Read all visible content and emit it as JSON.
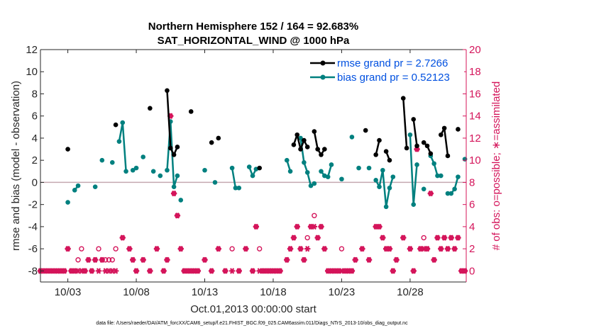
{
  "chart_data": {
    "type": "line",
    "title_line1": "Northern Hemisphere 152 / 164 = 92.683%",
    "title_line2": "SAT_HORIZONTAL_WIND @ 1000 hPa",
    "ylabel": "rmse and bias (model - observation)",
    "y2label": "# of obs: o=possible; ∗=assimilated",
    "xlabel": "Oct.01,2013 00:00:00 start",
    "footer": "data file: /Users/raeder/DAI/ATM_forcXX/CAM6_setup/f.e21.FHIST_BGC.f09_025.CAM6assim.011/Diags_NTrS_2013-10/obs_diag_output.nc",
    "xlim": [
      1,
      32.1
    ],
    "ylim": [
      -9,
      12
    ],
    "y2lim": [
      -1,
      20
    ],
    "x_ticks": [
      3,
      8,
      13,
      18,
      23,
      28
    ],
    "x_tick_labels": [
      "10/03",
      "10/08",
      "10/13",
      "10/18",
      "10/23",
      "10/28"
    ],
    "y_ticks": [
      -8,
      -6,
      -4,
      -2,
      0,
      2,
      4,
      6,
      8,
      10,
      12
    ],
    "y_tick_labels": [
      "-8",
      "-6",
      "-4",
      "-2",
      "0",
      "2",
      "4",
      "6",
      "8",
      "10",
      "12"
    ],
    "y2_ticks": [
      0,
      2,
      4,
      6,
      8,
      10,
      12,
      14,
      16,
      18,
      20
    ],
    "y2_tick_labels": [
      "0",
      "2",
      "4",
      "6",
      "8",
      "10",
      "12",
      "14",
      "16",
      "18",
      "20"
    ],
    "colors": {
      "rmse": "#000000",
      "bias": "#00807f",
      "obs": "#d4145a",
      "zero": "#c4a9b0"
    },
    "legend": {
      "position": "top-right",
      "rmse_label": "rmse grand pr = 2.7266",
      "bias_label": "bias grand pr = 0.52123",
      "text_color": "#0050e0"
    },
    "series": [
      {
        "name": "rmse",
        "segments": [
          [
            [
              3.0,
              3.0
            ]
          ],
          [
            [
              6.5,
              5.2
            ]
          ],
          [
            [
              9.0,
              6.7
            ]
          ],
          [
            [
              10.25,
              8.3
            ],
            [
              10.5,
              3.1
            ],
            [
              10.75,
              2.5
            ],
            [
              11.0,
              3.2
            ]
          ],
          [
            [
              12.0,
              6.4
            ]
          ],
          [
            [
              13.5,
              3.6
            ]
          ],
          [
            [
              14.0,
              4.0
            ]
          ],
          [
            [
              17.0,
              1.3
            ]
          ],
          [
            [
              19.5,
              3.4
            ],
            [
              19.75,
              4.3
            ],
            [
              20.0,
              3.0
            ],
            [
              20.25,
              3.8
            ],
            [
              20.5,
              3.2
            ]
          ],
          [
            [
              21.0,
              4.6
            ],
            [
              21.25,
              3.0
            ],
            [
              21.5,
              2.5
            ],
            [
              21.75,
              3.0
            ]
          ],
          [
            [
              24.75,
              4.7
            ]
          ],
          [
            [
              25.5,
              2.5
            ],
            [
              25.75,
              3.8
            ]
          ],
          [
            [
              26.25,
              2.8
            ],
            [
              26.5,
              2.0
            ]
          ],
          [
            [
              27.5,
              7.6
            ],
            [
              27.75,
              3.1
            ]
          ],
          [
            [
              28.25,
              5.7
            ],
            [
              28.5,
              3.3
            ]
          ],
          [
            [
              29.0,
              3.6
            ],
            [
              29.25,
              3.3
            ],
            [
              29.5,
              2.6
            ]
          ],
          [
            [
              30.25,
              4.3
            ],
            [
              30.5,
              4.9
            ],
            [
              30.75,
              2.4
            ]
          ],
          [
            [
              31.5,
              4.8
            ]
          ]
        ]
      },
      {
        "name": "bias",
        "segments": [
          [
            [
              3.0,
              -1.8
            ]
          ],
          [
            [
              3.5,
              -0.7
            ],
            [
              3.75,
              -0.3
            ]
          ],
          [
            [
              5.0,
              -0.4
            ]
          ],
          [
            [
              5.5,
              2.0
            ]
          ],
          [
            [
              6.25,
              1.8
            ]
          ],
          [
            [
              6.75,
              3.7
            ],
            [
              7.0,
              5.4
            ],
            [
              7.25,
              1.0
            ]
          ],
          [
            [
              7.75,
              1.1
            ],
            [
              8.0,
              1.3
            ]
          ],
          [
            [
              8.5,
              2.3
            ]
          ],
          [
            [
              9.25,
              1.0
            ]
          ],
          [
            [
              9.75,
              0.6
            ]
          ],
          [
            [
              10.25,
              1.1
            ],
            [
              10.5,
              5.5
            ],
            [
              10.75,
              -0.4
            ],
            [
              11.0,
              0.6
            ]
          ],
          [
            [
              11.25,
              -1.6
            ]
          ],
          [
            [
              13.0,
              1.1
            ]
          ],
          [
            [
              13.75,
              0.0
            ]
          ],
          [
            [
              15.0,
              1.3
            ],
            [
              15.25,
              -0.5
            ],
            [
              15.5,
              -0.5
            ]
          ],
          [
            [
              16.25,
              1.4
            ],
            [
              16.5,
              0.6
            ],
            [
              16.75,
              1.2
            ]
          ],
          [
            [
              19.0,
              2.0
            ],
            [
              19.25,
              1.0
            ]
          ],
          [
            [
              20.0,
              4.0
            ],
            [
              20.25,
              1.8
            ],
            [
              20.5,
              0.9
            ],
            [
              20.75,
              -0.3
            ],
            [
              21.0,
              -0.1
            ]
          ],
          [
            [
              21.5,
              1.0
            ],
            [
              21.75,
              0.6
            ],
            [
              22.0,
              0.5
            ],
            [
              22.25,
              1.6
            ]
          ],
          [
            [
              23.0,
              0.3
            ]
          ],
          [
            [
              23.75,
              4.1
            ]
          ],
          [
            [
              24.25,
              1.3
            ]
          ],
          [
            [
              25.0,
              1.3
            ]
          ],
          [
            [
              25.5,
              0.2
            ],
            [
              25.75,
              -0.4
            ],
            [
              26.0,
              1.1
            ],
            [
              26.25,
              -2.2
            ],
            [
              26.5,
              -0.5
            ],
            [
              26.75,
              0.5
            ]
          ],
          [
            [
              28.0,
              4.3
            ],
            [
              28.25,
              -2.0
            ],
            [
              28.5,
              1.6
            ]
          ],
          [
            [
              29.0,
              -0.6
            ]
          ],
          [
            [
              29.5,
              2.4
            ],
            [
              29.75,
              1.7
            ],
            [
              30.0,
              0.6
            ],
            [
              30.25,
              0.6
            ]
          ],
          [
            [
              30.75,
              -1.0
            ],
            [
              31.0,
              -1.0
            ],
            [
              31.25,
              -0.6
            ],
            [
              31.5,
              0.5
            ]
          ],
          [
            [
              32.0,
              2.1
            ]
          ]
        ]
      }
    ],
    "obs_possible": [
      [
        1,
        0
      ],
      [
        1.25,
        0
      ],
      [
        1.5,
        0
      ],
      [
        1.75,
        0
      ],
      [
        2,
        0
      ],
      [
        2.25,
        0
      ],
      [
        2.5,
        0
      ],
      [
        2.75,
        0
      ],
      [
        3,
        2
      ],
      [
        3.25,
        0
      ],
      [
        3.5,
        0
      ],
      [
        3.75,
        1
      ],
      [
        4,
        2
      ],
      [
        4.25,
        0
      ],
      [
        4.5,
        1
      ],
      [
        4.75,
        0
      ],
      [
        5,
        1
      ],
      [
        5.25,
        2
      ],
      [
        5.5,
        1
      ],
      [
        5.75,
        1
      ],
      [
        6,
        1
      ],
      [
        6.25,
        1
      ],
      [
        6.5,
        2
      ],
      [
        7,
        3
      ],
      [
        7.5,
        2
      ],
      [
        7.75,
        1
      ],
      [
        8,
        0
      ],
      [
        8.5,
        1
      ],
      [
        9,
        0
      ],
      [
        9.5,
        2
      ],
      [
        10,
        0
      ],
      [
        10.25,
        1
      ],
      [
        10.5,
        14
      ],
      [
        10.75,
        7
      ],
      [
        11,
        5
      ],
      [
        11.25,
        2
      ],
      [
        11.5,
        0
      ],
      [
        11.75,
        0
      ],
      [
        12,
        0
      ],
      [
        12.25,
        0
      ],
      [
        12.5,
        0
      ],
      [
        13,
        1
      ],
      [
        13.5,
        0
      ],
      [
        14,
        2
      ],
      [
        14.5,
        0
      ],
      [
        15,
        2
      ],
      [
        15.5,
        0
      ],
      [
        16,
        2
      ],
      [
        16.5,
        0
      ],
      [
        16.75,
        4
      ],
      [
        17,
        2
      ],
      [
        17.25,
        0
      ],
      [
        17.5,
        0
      ],
      [
        17.75,
        0
      ],
      [
        18,
        0
      ],
      [
        18.25,
        0
      ],
      [
        18.5,
        0
      ],
      [
        19,
        1
      ],
      [
        19.25,
        2
      ],
      [
        19.5,
        3
      ],
      [
        19.75,
        4
      ],
      [
        20,
        2
      ],
      [
        20.25,
        1
      ],
      [
        20.5,
        3
      ],
      [
        20.75,
        4
      ],
      [
        21,
        5
      ],
      [
        21.25,
        3
      ],
      [
        21.5,
        4
      ],
      [
        21.75,
        2
      ],
      [
        22,
        0
      ],
      [
        22.25,
        0
      ],
      [
        22.5,
        0
      ],
      [
        22.75,
        0
      ],
      [
        23,
        2
      ],
      [
        23.25,
        0
      ],
      [
        23.5,
        0
      ],
      [
        23.75,
        0
      ],
      [
        24,
        1
      ],
      [
        24.5,
        2
      ],
      [
        25,
        1
      ],
      [
        25.5,
        4
      ],
      [
        25.75,
        4
      ],
      [
        26,
        3
      ],
      [
        26.25,
        2
      ],
      [
        26.5,
        2
      ],
      [
        26.75,
        0
      ],
      [
        27,
        1
      ],
      [
        27.5,
        3
      ],
      [
        28,
        2
      ],
      [
        28.25,
        0
      ],
      [
        28.5,
        11
      ],
      [
        28.75,
        2
      ],
      [
        29,
        3
      ],
      [
        29.25,
        2
      ],
      [
        29.5,
        7
      ],
      [
        29.75,
        1
      ],
      [
        30,
        3
      ],
      [
        30.25,
        2
      ],
      [
        30.5,
        3
      ],
      [
        30.75,
        2
      ],
      [
        31,
        3
      ],
      [
        31.25,
        2
      ],
      [
        31.5,
        3
      ],
      [
        31.75,
        0
      ],
      [
        32,
        0
      ]
    ],
    "obs_assimilated": [
      [
        1,
        0
      ],
      [
        1.25,
        0
      ],
      [
        1.5,
        0
      ],
      [
        1.75,
        0
      ],
      [
        2,
        0
      ],
      [
        2.25,
        0
      ],
      [
        2.5,
        0
      ],
      [
        2.75,
        0
      ],
      [
        3,
        2
      ],
      [
        3.25,
        0
      ],
      [
        3.5,
        0
      ],
      [
        3.75,
        0
      ],
      [
        4,
        0
      ],
      [
        4.25,
        0
      ],
      [
        4.5,
        1
      ],
      [
        4.75,
        0
      ],
      [
        5,
        1
      ],
      [
        5.25,
        0
      ],
      [
        5.5,
        1
      ],
      [
        5.75,
        0
      ],
      [
        6,
        0
      ],
      [
        6.25,
        0
      ],
      [
        6.5,
        0
      ],
      [
        7,
        3
      ],
      [
        7.5,
        2
      ],
      [
        7.75,
        1
      ],
      [
        8,
        0
      ],
      [
        8.5,
        1
      ],
      [
        9,
        0
      ],
      [
        9.5,
        2
      ],
      [
        10,
        0
      ],
      [
        10.25,
        1
      ],
      [
        10.5,
        14
      ],
      [
        10.75,
        7
      ],
      [
        11,
        5
      ],
      [
        11.25,
        2
      ],
      [
        11.5,
        0
      ],
      [
        11.75,
        0
      ],
      [
        12,
        0
      ],
      [
        12.25,
        0
      ],
      [
        12.5,
        0
      ],
      [
        13,
        1
      ],
      [
        13.5,
        0
      ],
      [
        14,
        2
      ],
      [
        14.5,
        0
      ],
      [
        15,
        0
      ],
      [
        15.5,
        0
      ],
      [
        16,
        2
      ],
      [
        16.5,
        0
      ],
      [
        16.75,
        4
      ],
      [
        17,
        0
      ],
      [
        17.25,
        0
      ],
      [
        17.5,
        0
      ],
      [
        17.75,
        0
      ],
      [
        18,
        0
      ],
      [
        18.25,
        0
      ],
      [
        18.5,
        0
      ],
      [
        19,
        1
      ],
      [
        19.25,
        2
      ],
      [
        19.5,
        3
      ],
      [
        19.75,
        4
      ],
      [
        20,
        2
      ],
      [
        20.25,
        1
      ],
      [
        20.5,
        2
      ],
      [
        20.75,
        4
      ],
      [
        21,
        4
      ],
      [
        21.25,
        3
      ],
      [
        21.5,
        4
      ],
      [
        21.75,
        2
      ],
      [
        22,
        0
      ],
      [
        22.25,
        0
      ],
      [
        22.5,
        0
      ],
      [
        22.75,
        0
      ],
      [
        23,
        0
      ],
      [
        23.25,
        0
      ],
      [
        23.5,
        0
      ],
      [
        23.75,
        0
      ],
      [
        24,
        1
      ],
      [
        24.5,
        2
      ],
      [
        25,
        1
      ],
      [
        25.5,
        4
      ],
      [
        25.75,
        4
      ],
      [
        26,
        3
      ],
      [
        26.25,
        2
      ],
      [
        26.5,
        2
      ],
      [
        26.75,
        0
      ],
      [
        27,
        1
      ],
      [
        27.5,
        3
      ],
      [
        28,
        2
      ],
      [
        28.25,
        0
      ],
      [
        28.5,
        11
      ],
      [
        28.75,
        2
      ],
      [
        29,
        2
      ],
      [
        29.25,
        2
      ],
      [
        29.5,
        7
      ],
      [
        29.75,
        1
      ],
      [
        30,
        3
      ],
      [
        30.25,
        2
      ],
      [
        30.5,
        3
      ],
      [
        30.75,
        2
      ],
      [
        31,
        3
      ],
      [
        31.25,
        2
      ],
      [
        31.5,
        3
      ],
      [
        31.75,
        0
      ],
      [
        32,
        0
      ]
    ]
  }
}
